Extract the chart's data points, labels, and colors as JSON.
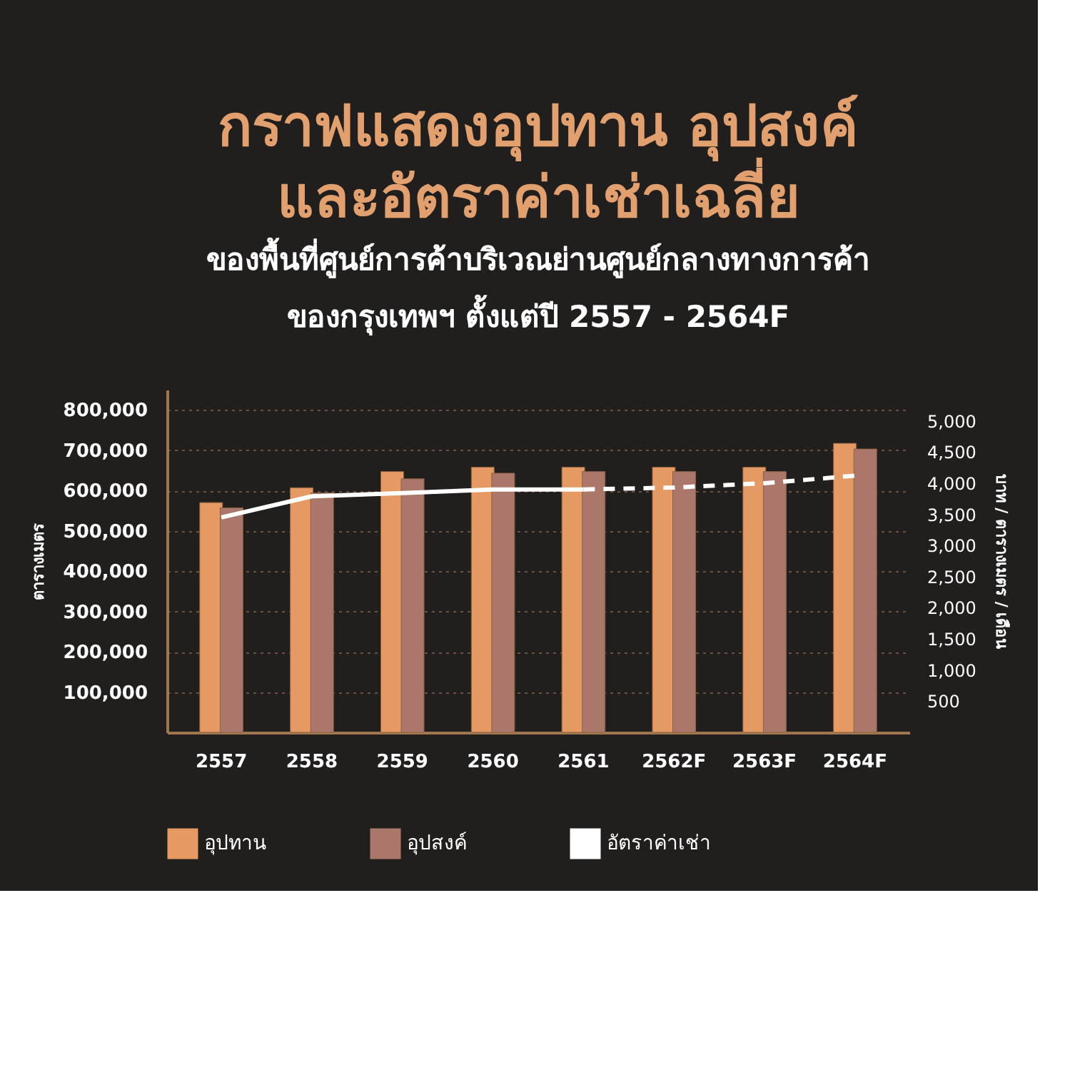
{
  "chart_data": {
    "type": "bar",
    "title": [
      "กราฟแสดงอุปทาน อุปสงค์",
      "และอัตราค่าเช่าเฉลี่ย"
    ],
    "subtitle": [
      "ของพื้นที่ศูนย์การค้าบริเวณย่านศูนย์กลางทางการค้า",
      "ของกรุงเทพฯ ตั้งแต่ปี 2557 - 2564F"
    ],
    "categories": [
      "2557",
      "2558",
      "2559",
      "2560",
      "2561",
      "2562F",
      "2563F",
      "2564F"
    ],
    "series": [
      {
        "name": "อุปทาน",
        "color": "#e69a63",
        "values": [
          570000,
          607000,
          647000,
          658000,
          658000,
          658000,
          658000,
          717000
        ]
      },
      {
        "name": "อุปสงค์",
        "color": "#ac776b",
        "values": [
          557000,
          594000,
          629000,
          643000,
          647000,
          647000,
          647000,
          703000
        ]
      },
      {
        "name": "อัตราค่าเช่า",
        "type": "line",
        "axis": "y2",
        "color": "#ffffff",
        "line_style": "solid",
        "values": [
          3450,
          3790,
          3840,
          3900,
          3900,
          null,
          null,
          null
        ]
      },
      {
        "type": "line",
        "axis": "y2",
        "color": "#ffffff",
        "line_style": "dashed",
        "values": [
          null,
          null,
          null,
          null,
          3900,
          3930,
          4000,
          4120
        ]
      }
    ],
    "ylabel": "ตารางเมตร",
    "y2label": "บาท / ตารางเมตร / เดือน",
    "ylim": [
      0,
      850000
    ],
    "yticks": [
      {
        "value": 100000,
        "label": "100,000"
      },
      {
        "value": 200000,
        "label": "200,000"
      },
      {
        "value": 300000,
        "label": "300,000"
      },
      {
        "value": 400000,
        "label": "400,000"
      },
      {
        "value": 500000,
        "label": "500,000"
      },
      {
        "value": 600000,
        "label": "600,000"
      },
      {
        "value": 700000,
        "label": "700,000"
      },
      {
        "value": 800000,
        "label": "800,000"
      }
    ],
    "y2lim": [
      0,
      5500
    ],
    "y2ticks": [
      500,
      {
        "value": 1000,
        "label": "1,000"
      },
      {
        "value": 1500,
        "label": "1,500"
      },
      {
        "value": 2000,
        "label": "2,000"
      },
      {
        "value": 2500,
        "label": "2,500"
      },
      {
        "value": 3000,
        "label": "3,000"
      },
      {
        "value": 3500,
        "label": "3,500"
      },
      {
        "value": 4000,
        "label": "4,000"
      },
      {
        "value": 4500,
        "label": "4,500"
      },
      {
        "value": 5000,
        "label": "5,000"
      }
    ],
    "grid": "y",
    "legend": "bottom"
  }
}
